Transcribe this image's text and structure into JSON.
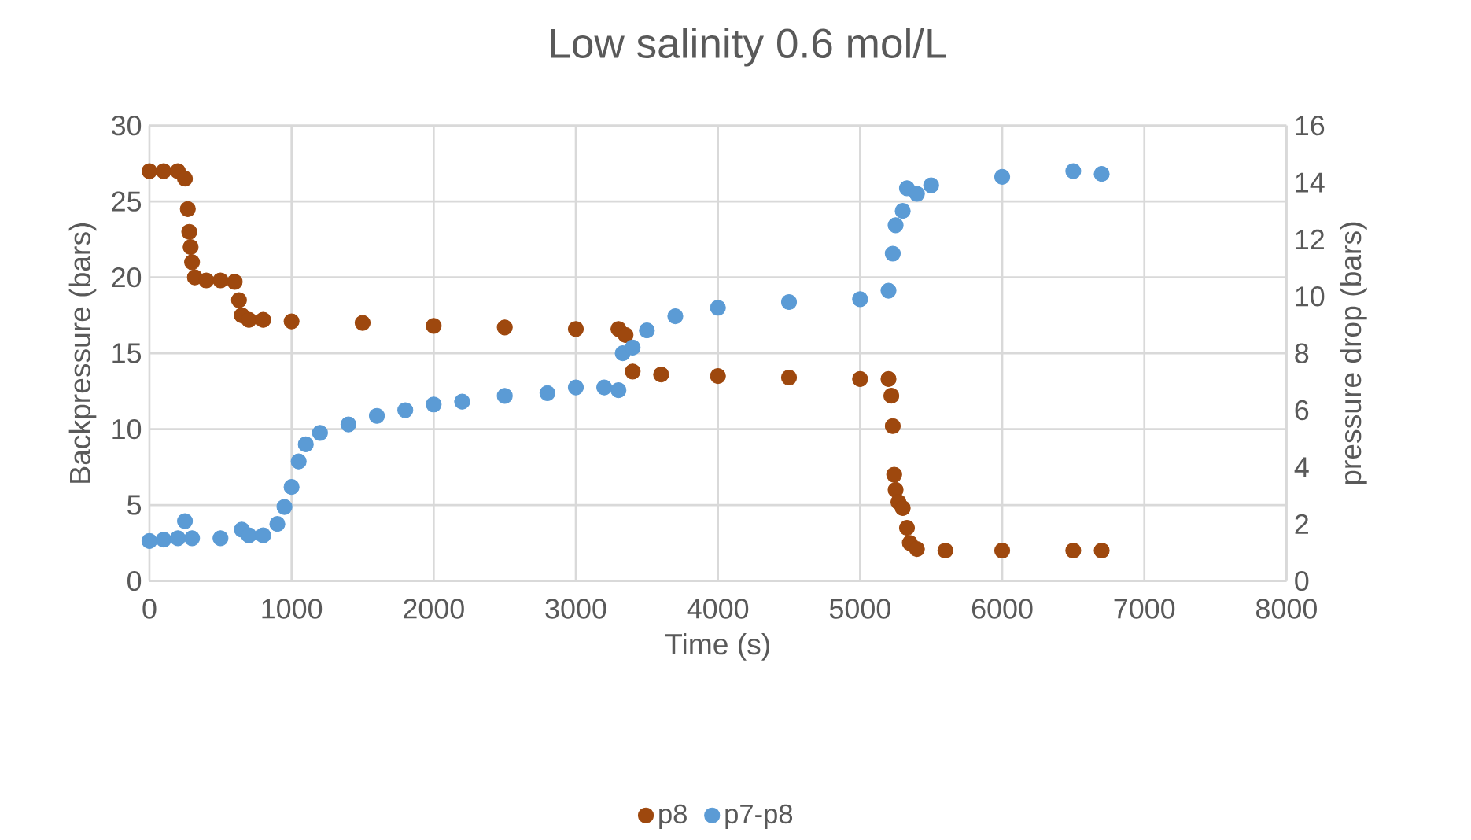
{
  "chart_data": {
    "type": "scatter",
    "title": "Low salinity 0.6 mol/L",
    "xlabel": "Time (s)",
    "ylabel": "Backpressure (bars)",
    "y2label": "pressure drop (bars)",
    "xlim": [
      0,
      8000
    ],
    "xticks": [
      0,
      1000,
      2000,
      3000,
      4000,
      5000,
      6000,
      7000,
      8000
    ],
    "ylim": [
      0,
      30
    ],
    "yticks": [
      0,
      5,
      10,
      15,
      20,
      25,
      30
    ],
    "y2lim": [
      0,
      16
    ],
    "y2ticks": [
      0,
      2,
      4,
      6,
      8,
      10,
      12,
      14,
      16
    ],
    "grid": true,
    "legend": "bottom",
    "marker": "circle",
    "series": [
      {
        "name": "p8",
        "color": "#9e480e",
        "x": [
          0,
          100,
          200,
          250,
          270,
          280,
          290,
          300,
          320,
          400,
          500,
          600,
          630,
          650,
          700,
          800,
          1000,
          1500,
          2000,
          2500,
          3000,
          3300,
          3350,
          3400,
          3600,
          4000,
          4500,
          5000,
          5200,
          5220,
          5230,
          5240,
          5250,
          5270,
          5300,
          5330,
          5350,
          5400,
          5600,
          6000,
          6500,
          6700
        ],
        "values": [
          27,
          27,
          27,
          26.5,
          24.5,
          23,
          22,
          21,
          20,
          19.8,
          19.8,
          19.7,
          18.5,
          17.5,
          17.2,
          17.2,
          17.1,
          17,
          16.8,
          16.7,
          16.6,
          16.6,
          16.2,
          13.8,
          13.6,
          13.5,
          13.4,
          13.3,
          13.3,
          12.2,
          10.2,
          7,
          6,
          5.2,
          4.8,
          3.5,
          2.5,
          2.1,
          2,
          2,
          2,
          2
        ]
      },
      {
        "name": "p7-p8",
        "color": "#5b9bd5",
        "axis": "y2",
        "x": [
          0,
          100,
          200,
          250,
          300,
          500,
          650,
          700,
          800,
          900,
          950,
          1000,
          1050,
          1100,
          1200,
          1400,
          1600,
          1800,
          2000,
          2200,
          2500,
          2800,
          3000,
          3200,
          3300,
          3330,
          3400,
          3500,
          3700,
          4000,
          4500,
          5000,
          5200,
          5230,
          5250,
          5300,
          5330,
          5400,
          5500,
          6000,
          6500,
          6700
        ],
        "values": [
          1.4,
          1.45,
          1.5,
          2.1,
          1.5,
          1.5,
          1.8,
          1.6,
          1.6,
          2.0,
          2.6,
          3.3,
          4.2,
          4.8,
          5.2,
          5.5,
          5.8,
          6.0,
          6.2,
          6.3,
          6.5,
          6.6,
          6.8,
          6.8,
          6.7,
          8.0,
          8.2,
          8.8,
          9.3,
          9.6,
          9.8,
          9.9,
          10.2,
          11.5,
          12.5,
          13.0,
          13.8,
          13.6,
          13.9,
          14.2,
          14.4,
          14.3
        ]
      }
    ]
  }
}
